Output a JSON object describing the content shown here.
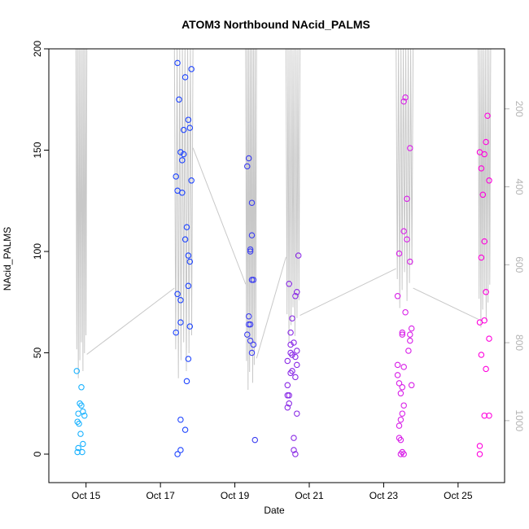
{
  "chart_data": {
    "type": "scatter",
    "title": "ATOM3 Northbound NAcid_PALMS",
    "xlabel": "Date",
    "ylabel": "NAcid_PALMS",
    "xlim": [
      "2017-10-14T00:00",
      "2017-10-26T06:00"
    ],
    "ylim": [
      0,
      200
    ],
    "x_ticks": [
      {
        "label": "Oct 15",
        "date": "2017-10-15"
      },
      {
        "label": "Oct 17",
        "date": "2017-10-17"
      },
      {
        "label": "Oct 19",
        "date": "2017-10-19"
      },
      {
        "label": "Oct 21",
        "date": "2017-10-21"
      },
      {
        "label": "Oct 23",
        "date": "2017-10-23"
      },
      {
        "label": "Oct 25",
        "date": "2017-10-25"
      }
    ],
    "y_ticks": [
      0,
      50,
      100,
      150,
      200
    ],
    "y2_ticks": [
      200,
      400,
      600,
      800,
      1000
    ],
    "y2_range": [
      0,
      1040
    ],
    "y2_reversed": true,
    "grid": false,
    "colors": {
      "axis": "#000000",
      "secondary_axis": "#b3b3b3",
      "altitude_line": "#c8c8c8",
      "color_ramp": [
        "#19b2ff",
        "#1e44ff",
        "#5a2ae6",
        "#a62ae0",
        "#ff00dd"
      ]
    },
    "series": [
      {
        "color": "#19b2ff",
        "points": [
          [
            "2017-10-14T18:00",
            41
          ],
          [
            "2017-10-14T20:00",
            25
          ],
          [
            "2017-10-14T21:00",
            24
          ],
          [
            "2017-10-14T19:00",
            20
          ],
          [
            "2017-10-14T23:00",
            19
          ],
          [
            "2017-10-14T18:30",
            16
          ],
          [
            "2017-10-14T19:30",
            15
          ],
          [
            "2017-10-14T20:30",
            10
          ],
          [
            "2017-10-14T22:00",
            5
          ],
          [
            "2017-10-14T19:00",
            3
          ],
          [
            "2017-10-14T21:30",
            1
          ],
          [
            "2017-10-14T18:30",
            1
          ],
          [
            "2017-10-14T21:00",
            33
          ],
          [
            "2017-10-14T22:00",
            21
          ]
        ]
      },
      {
        "color": "#1e44ff",
        "points": [
          [
            "2017-10-17T11:00",
            193
          ],
          [
            "2017-10-17T16:00",
            186
          ],
          [
            "2017-10-17T20:00",
            190
          ],
          [
            "2017-10-17T12:00",
            175
          ],
          [
            "2017-10-17T18:00",
            165
          ],
          [
            "2017-10-17T15:00",
            160
          ],
          [
            "2017-10-17T19:00",
            161
          ],
          [
            "2017-10-17T13:00",
            149
          ],
          [
            "2017-10-17T15:00",
            148
          ],
          [
            "2017-10-17T14:00",
            145
          ],
          [
            "2017-10-17T10:00",
            137
          ],
          [
            "2017-10-17T20:00",
            135
          ],
          [
            "2017-10-17T11:00",
            130
          ],
          [
            "2017-10-17T14:00",
            129
          ],
          [
            "2017-10-17T17:00",
            112
          ],
          [
            "2017-10-17T16:00",
            106
          ],
          [
            "2017-10-17T18:00",
            98
          ],
          [
            "2017-10-17T19:00",
            95
          ],
          [
            "2017-10-17T18:00",
            83
          ],
          [
            "2017-10-17T11:00",
            79
          ],
          [
            "2017-10-17T13:00",
            76
          ],
          [
            "2017-10-17T13:00",
            65
          ],
          [
            "2017-10-17T19:00",
            63
          ],
          [
            "2017-10-17T10:00",
            60
          ],
          [
            "2017-10-17T18:00",
            47
          ],
          [
            "2017-10-17T17:00",
            36
          ],
          [
            "2017-10-17T13:00",
            17
          ],
          [
            "2017-10-17T16:00",
            12
          ],
          [
            "2017-10-17T13:00",
            2
          ],
          [
            "2017-10-17T11:00",
            0
          ]
        ]
      },
      {
        "color": "#3a3cf0",
        "points": [
          [
            "2017-10-19T09:00",
            146
          ],
          [
            "2017-10-19T08:00",
            142
          ],
          [
            "2017-10-19T11:00",
            124
          ],
          [
            "2017-10-19T11:00",
            108
          ],
          [
            "2017-10-19T10:00",
            101
          ],
          [
            "2017-10-19T10:00",
            100
          ],
          [
            "2017-10-19T11:00",
            86
          ],
          [
            "2017-10-19T12:00",
            86
          ],
          [
            "2017-10-19T09:00",
            68
          ],
          [
            "2017-10-19T09:00",
            64
          ],
          [
            "2017-10-19T10:00",
            64
          ],
          [
            "2017-10-19T08:00",
            59
          ],
          [
            "2017-10-19T10:00",
            56
          ],
          [
            "2017-10-19T12:00",
            54
          ],
          [
            "2017-10-19T11:00",
            50
          ],
          [
            "2017-10-19T13:00",
            7
          ]
        ]
      },
      {
        "color": "#8a2ae6",
        "points": [
          [
            "2017-10-20T11:00",
            84
          ],
          [
            "2017-10-20T17:00",
            98
          ],
          [
            "2017-10-20T16:00",
            80
          ],
          [
            "2017-10-20T15:00",
            78
          ],
          [
            "2017-10-20T13:00",
            67
          ],
          [
            "2017-10-20T12:00",
            60
          ],
          [
            "2017-10-20T14:00",
            55
          ],
          [
            "2017-10-20T12:00",
            54
          ],
          [
            "2017-10-20T16:00",
            51
          ],
          [
            "2017-10-20T12:00",
            50
          ],
          [
            "2017-10-20T13:00",
            49
          ],
          [
            "2017-10-20T15:00",
            48
          ],
          [
            "2017-10-20T10:00",
            46
          ],
          [
            "2017-10-20T16:00",
            44
          ],
          [
            "2017-10-20T13:00",
            41
          ],
          [
            "2017-10-20T12:00",
            40
          ],
          [
            "2017-10-20T15:00",
            38
          ],
          [
            "2017-10-20T10:00",
            34
          ],
          [
            "2017-10-20T10:00",
            29
          ],
          [
            "2017-10-20T11:00",
            29
          ],
          [
            "2017-10-20T11:00",
            25
          ],
          [
            "2017-10-20T10:00",
            23
          ],
          [
            "2017-10-20T16:00",
            20
          ],
          [
            "2017-10-20T14:00",
            8
          ],
          [
            "2017-10-20T14:00",
            2
          ],
          [
            "2017-10-20T15:00",
            0
          ]
        ]
      },
      {
        "color": "#d81ee8",
        "points": [
          [
            "2017-10-23T14:00",
            176
          ],
          [
            "2017-10-23T13:00",
            174
          ],
          [
            "2017-10-23T17:00",
            151
          ],
          [
            "2017-10-23T15:00",
            126
          ],
          [
            "2017-10-23T13:00",
            110
          ],
          [
            "2017-10-23T15:00",
            106
          ],
          [
            "2017-10-23T10:00",
            99
          ],
          [
            "2017-10-23T17:00",
            95
          ],
          [
            "2017-10-23T09:00",
            78
          ],
          [
            "2017-10-23T14:00",
            70
          ],
          [
            "2017-10-23T18:00",
            62
          ],
          [
            "2017-10-23T12:00",
            60
          ],
          [
            "2017-10-23T12:00",
            59
          ],
          [
            "2017-10-23T17:00",
            59
          ],
          [
            "2017-10-23T17:00",
            56
          ],
          [
            "2017-10-23T16:00",
            51
          ],
          [
            "2017-10-23T09:00",
            44
          ],
          [
            "2017-10-23T13:00",
            43
          ],
          [
            "2017-10-23T09:00",
            39
          ],
          [
            "2017-10-23T10:00",
            35
          ],
          [
            "2017-10-23T12:00",
            33
          ],
          [
            "2017-10-23T18:00",
            34
          ],
          [
            "2017-10-23T11:00",
            30
          ],
          [
            "2017-10-23T13:00",
            24
          ],
          [
            "2017-10-23T12:00",
            20
          ],
          [
            "2017-10-23T11:00",
            17
          ],
          [
            "2017-10-23T10:00",
            14
          ],
          [
            "2017-10-23T10:00",
            8
          ],
          [
            "2017-10-23T11:00",
            7
          ],
          [
            "2017-10-23T12:00",
            1
          ],
          [
            "2017-10-23T13:00",
            0
          ],
          [
            "2017-10-23T11:00",
            0
          ]
        ]
      },
      {
        "color": "#ff00dd",
        "points": [
          [
            "2017-10-25T14:00",
            149
          ],
          [
            "2017-10-25T17:00",
            148
          ],
          [
            "2017-10-25T18:00",
            154
          ],
          [
            "2017-10-25T19:00",
            167
          ],
          [
            "2017-10-25T15:00",
            141
          ],
          [
            "2017-10-25T20:00",
            135
          ],
          [
            "2017-10-25T16:00",
            128
          ],
          [
            "2017-10-25T17:00",
            105
          ],
          [
            "2017-10-25T15:00",
            97
          ],
          [
            "2017-10-25T18:00",
            80
          ],
          [
            "2017-10-25T14:00",
            65
          ],
          [
            "2017-10-25T17:00",
            66
          ],
          [
            "2017-10-25T20:00",
            57
          ],
          [
            "2017-10-25T15:00",
            49
          ],
          [
            "2017-10-25T18:00",
            42
          ],
          [
            "2017-10-25T17:00",
            19
          ],
          [
            "2017-10-25T20:00",
            19
          ],
          [
            "2017-10-25T14:00",
            4
          ],
          [
            "2017-10-25T14:00",
            0
          ]
        ]
      }
    ]
  }
}
